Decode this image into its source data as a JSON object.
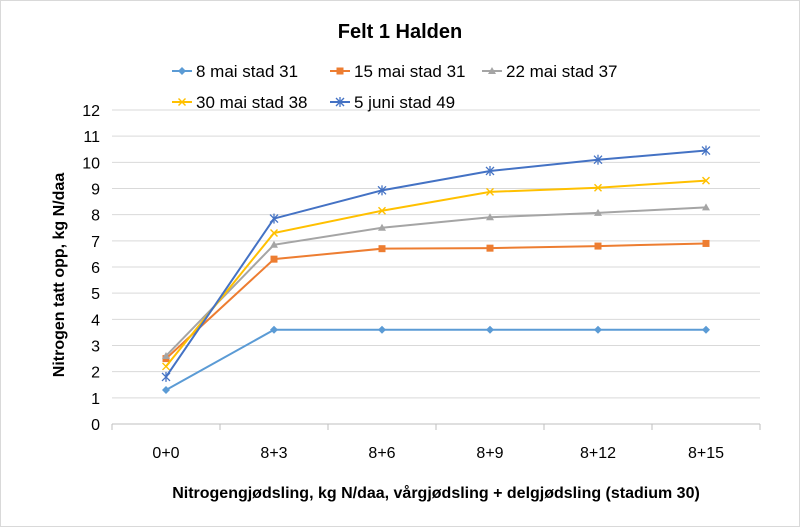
{
  "chart_data": {
    "type": "line",
    "title": "Felt 1 Halden",
    "xlabel": "Nitrogengjødsling, kg N/daa, vårgjødsling + delgjødsling (stadium 30)",
    "ylabel": "Nitrogen tatt opp, kg N/daa",
    "categories": [
      "0+0",
      "8+3",
      "8+6",
      "8+9",
      "8+12",
      "8+15"
    ],
    "ylim": [
      0,
      12
    ],
    "yticks": [
      "0",
      "1",
      "2",
      "3",
      "4",
      "5",
      "6",
      "7",
      "8",
      "9",
      "10",
      "11",
      "12"
    ],
    "legend_position": "top",
    "series": [
      {
        "name": "8 mai stad 31",
        "color": "#5b9bd5",
        "marker": "diamond",
        "values": [
          1.3,
          3.6,
          3.6,
          3.6,
          3.6,
          3.6
        ]
      },
      {
        "name": "15 mai stad 31",
        "color": "#ed7d31",
        "marker": "square",
        "values": [
          2.5,
          6.3,
          6.7,
          6.72,
          6.8,
          6.9
        ]
      },
      {
        "name": "22 mai stad 37",
        "color": "#a5a5a5",
        "marker": "triangle",
        "values": [
          2.6,
          6.85,
          7.5,
          7.9,
          8.07,
          8.28
        ]
      },
      {
        "name": "30 mai stad 38",
        "color": "#ffc000",
        "marker": "cross",
        "values": [
          2.2,
          7.3,
          8.15,
          8.87,
          9.03,
          9.3
        ]
      },
      {
        "name": "5 juni stad 49",
        "color": "#4472c4",
        "marker": "star",
        "values": [
          1.8,
          7.85,
          8.93,
          9.67,
          10.1,
          10.45
        ]
      }
    ]
  }
}
